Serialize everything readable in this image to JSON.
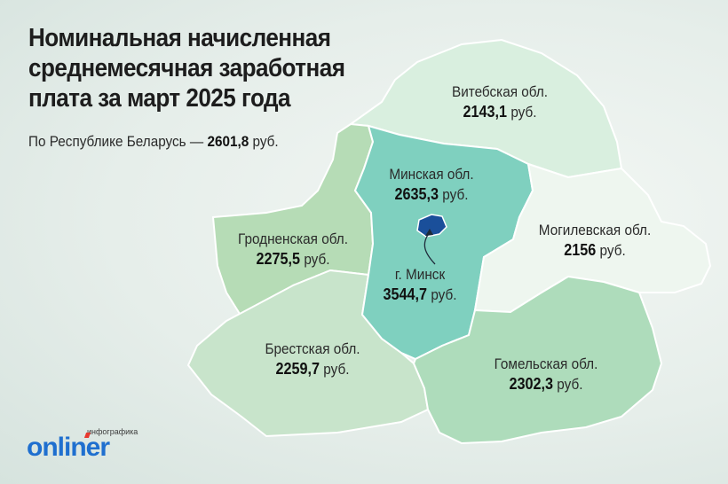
{
  "header": {
    "title_lines": [
      "Номинальная начисленная",
      "среднемесячная заработная",
      "плата за март 2025 года"
    ],
    "subtitle_prefix": "По Республике Беларусь — ",
    "subtitle_value": "2601,8",
    "subtitle_unit": " руб."
  },
  "regions": {
    "vitebsk": {
      "name": "Витебская обл.",
      "value": "2143,1",
      "unit": " руб.",
      "color": "#d9efdf"
    },
    "minsk_obl": {
      "name": "Минская обл.",
      "value": "2635,3",
      "unit": " руб.",
      "color": "#7fd0bf"
    },
    "mogilev": {
      "name": "Могилевская обл.",
      "value": "2156",
      "unit": " руб.",
      "color": "#eef6ef"
    },
    "grodno": {
      "name": "Гродненская обл.",
      "value": "2275,5",
      "unit": " руб.",
      "color": "#b6dcb6"
    },
    "minsk_city": {
      "name": "г. Минск",
      "value": "3544,7",
      "unit": " руб.",
      "color": "#1a4f9a"
    },
    "brest": {
      "name": "Брестская обл.",
      "value": "2259,7",
      "unit": " руб.",
      "color": "#c8e4cb"
    },
    "gomel": {
      "name": "Гомельская обл.",
      "value": "2302,3",
      "unit": " руб.",
      "color": "#aedcbb"
    }
  },
  "logo": {
    "small_text": "инфографика",
    "brand_text": "onliner"
  }
}
